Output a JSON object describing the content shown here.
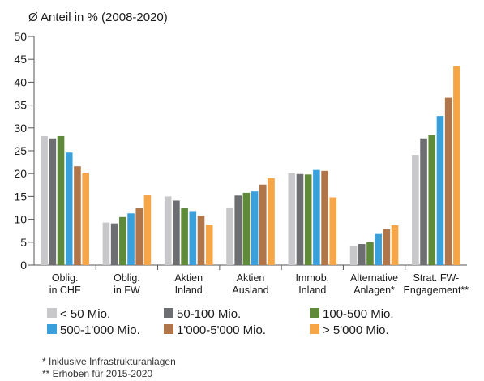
{
  "chart_data": {
    "type": "bar",
    "ylabel": "Ø Anteil in % (2008-2020)",
    "ylim": [
      0,
      50
    ],
    "yticks": [
      0,
      5,
      10,
      15,
      20,
      25,
      30,
      35,
      40,
      45,
      50
    ],
    "grid": false,
    "legend_position": "bottom",
    "categories": [
      [
        "Oblig.",
        "in CHF"
      ],
      [
        "Oblig.",
        "in FW"
      ],
      [
        "Aktien",
        "Inland"
      ],
      [
        "Aktien",
        "Ausland"
      ],
      [
        "Immob.",
        "Inland"
      ],
      [
        "Alternative",
        "Anlagen*"
      ],
      [
        "Strat. FW-",
        "Engagement**"
      ]
    ],
    "series": [
      {
        "name": "< 50 Mio.",
        "color": "#c8c8ca",
        "values": [
          28.2,
          9.3,
          15.0,
          12.6,
          20.1,
          4.2,
          24.1
        ]
      },
      {
        "name": "50-100 Mio.",
        "color": "#6d6e71",
        "values": [
          27.7,
          9.1,
          14.1,
          15.2,
          19.9,
          4.6,
          27.7
        ]
      },
      {
        "name": "100-500 Mio.",
        "color": "#5f8a3a",
        "values": [
          28.2,
          10.5,
          12.5,
          15.8,
          19.8,
          5.0,
          28.4
        ]
      },
      {
        "name": "500-1'000 Mio.",
        "color": "#3aa0dc",
        "values": [
          24.6,
          11.3,
          11.8,
          16.1,
          20.8,
          6.8,
          32.6
        ]
      },
      {
        "name": "1'000-5'000 Mio.",
        "color": "#b0764a",
        "values": [
          21.6,
          12.5,
          10.8,
          17.6,
          20.6,
          7.8,
          36.6
        ]
      },
      {
        "name": "> 5'000 Mio.",
        "color": "#f6a646",
        "values": [
          20.2,
          15.4,
          8.8,
          19.0,
          14.8,
          8.7,
          43.5
        ]
      }
    ],
    "footnotes": [
      "*  Inklusive Infrastrukturanlagen",
      "** Erhoben für 2015-2020"
    ]
  }
}
